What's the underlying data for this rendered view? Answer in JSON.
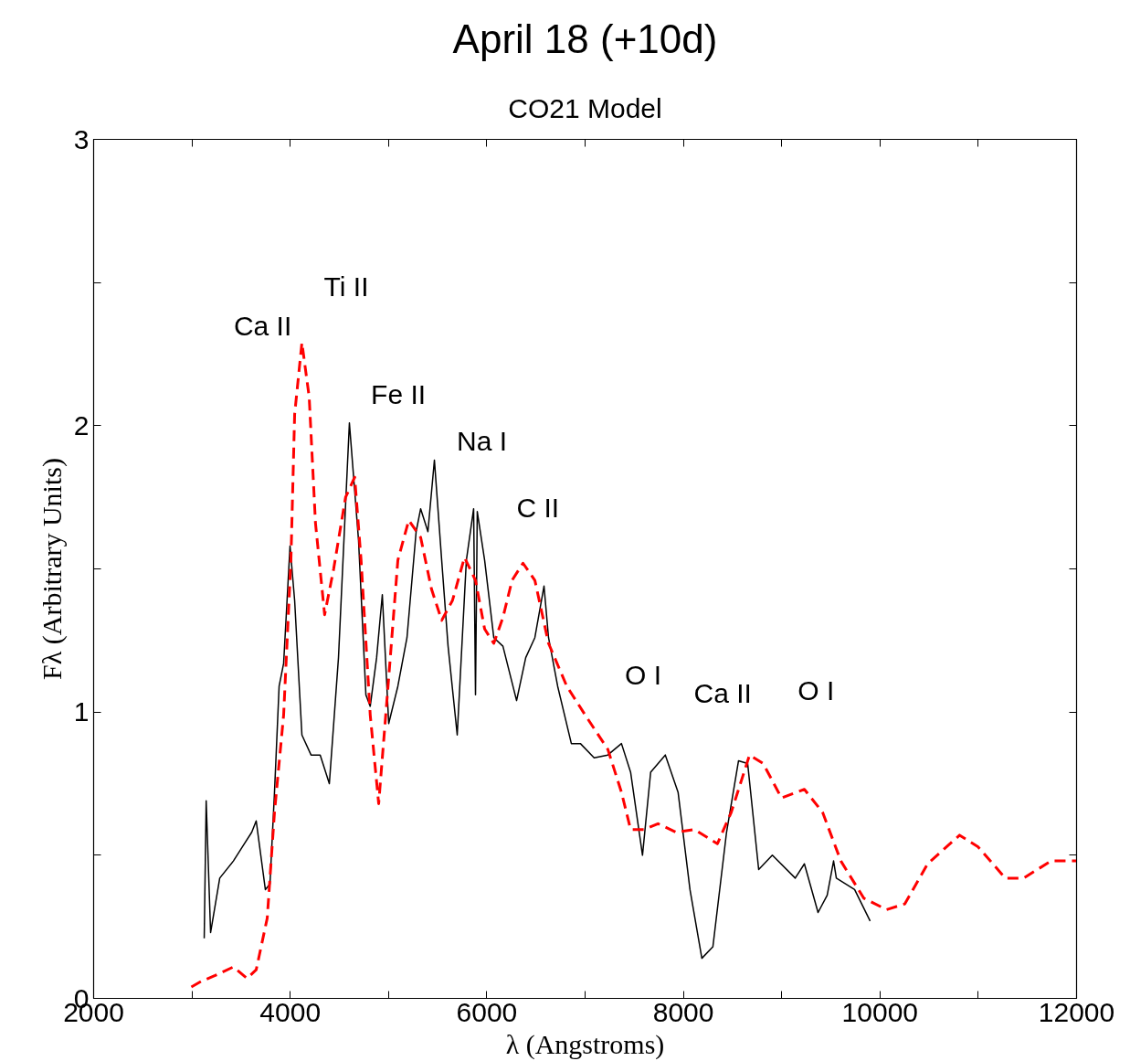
{
  "chart_data": {
    "type": "line",
    "title": "April 18 (+10d)",
    "subtitle": "CO21 Model",
    "xlabel": "λ (Angstroms)",
    "ylabel": "Fλ (Arbitrary Units)",
    "xlim": [
      2000,
      12000
    ],
    "ylim": [
      0,
      3
    ],
    "xticks": [
      2000,
      {
        "value": 3000,
        "label": null
      },
      4000,
      {
        "value": 5000,
        "label": null
      },
      6000,
      {
        "value": 7000,
        "label": null
      },
      8000,
      {
        "value": 9000,
        "label": null
      },
      10000,
      {
        "value": 11000,
        "label": null
      },
      12000
    ],
    "yticks": [
      0,
      {
        "value": 0.5,
        "label": null
      },
      1,
      {
        "value": 1.5,
        "label": null
      },
      2,
      {
        "value": 2.5,
        "label": null
      },
      3
    ],
    "grid": false,
    "marker": "none",
    "series": [
      {
        "color": "#000000",
        "line_style": "solid",
        "x": [
          3125,
          3145,
          3190,
          3283,
          3422,
          3515,
          3608,
          3654,
          3747,
          3794,
          3840,
          3887,
          3933,
          3998,
          4045,
          4119,
          4212,
          4305,
          4398,
          4491,
          4602,
          4695,
          4770,
          4814,
          4879,
          4937,
          5002,
          5095,
          5188,
          5281,
          5327,
          5401,
          5467,
          5541,
          5606,
          5699,
          5792,
          5866,
          5885,
          5903,
          5978,
          6071,
          6164,
          6303,
          6396,
          6489,
          6582,
          6628,
          6721,
          6860,
          6952,
          7092,
          7231,
          7370,
          7463,
          7584,
          7667,
          7816,
          7946,
          8067,
          8188,
          8300,
          8439,
          8561,
          8654,
          8766,
          8905,
          9138,
          9231,
          9370,
          9463,
          9528,
          9556,
          9742,
          9900
        ],
        "values": [
          0.21,
          0.69,
          0.23,
          0.42,
          0.48,
          0.53,
          0.58,
          0.62,
          0.38,
          0.4,
          0.72,
          1.09,
          1.17,
          1.58,
          1.39,
          0.92,
          0.85,
          0.85,
          0.75,
          1.19,
          2.01,
          1.6,
          1.06,
          1.02,
          1.19,
          1.41,
          0.96,
          1.09,
          1.26,
          1.63,
          1.71,
          1.63,
          1.88,
          1.53,
          1.23,
          0.92,
          1.53,
          1.71,
          1.06,
          1.7,
          1.53,
          1.26,
          1.23,
          1.04,
          1.19,
          1.26,
          1.44,
          1.26,
          1.09,
          0.89,
          0.89,
          0.84,
          0.85,
          0.89,
          0.79,
          0.5,
          0.79,
          0.85,
          0.72,
          0.38,
          0.14,
          0.18,
          0.58,
          0.83,
          0.82,
          0.45,
          0.5,
          0.42,
          0.47,
          0.3,
          0.36,
          0.48,
          0.42,
          0.38,
          0.27
        ]
      },
      {
        "color": "#ff0000",
        "line_style": "dashed",
        "x": [
          2994,
          3097,
          3236,
          3422,
          3561,
          3654,
          3766,
          3840,
          3933,
          4007,
          4045,
          4119,
          4193,
          4257,
          4350,
          4442,
          4563,
          4656,
          4721,
          4814,
          4900,
          5002,
          5095,
          5206,
          5327,
          5437,
          5541,
          5651,
          5773,
          5885,
          5978,
          6071,
          6164,
          6257,
          6368,
          6489,
          6628,
          6814,
          7000,
          7231,
          7370,
          7463,
          7602,
          7742,
          7928,
          8113,
          8346,
          8487,
          8673,
          8812,
          8998,
          9231,
          9416,
          9602,
          9835,
          10067,
          10253,
          10485,
          10810,
          10996,
          11275,
          11461,
          11740,
          12000
        ],
        "values": [
          0.04,
          0.06,
          0.08,
          0.11,
          0.07,
          0.1,
          0.28,
          0.65,
          0.99,
          1.53,
          2.04,
          2.29,
          2.1,
          1.66,
          1.34,
          1.5,
          1.75,
          1.82,
          1.53,
          0.99,
          0.68,
          1.12,
          1.53,
          1.67,
          1.61,
          1.43,
          1.32,
          1.39,
          1.54,
          1.46,
          1.29,
          1.24,
          1.33,
          1.46,
          1.52,
          1.46,
          1.24,
          1.09,
          0.99,
          0.87,
          0.72,
          0.59,
          0.59,
          0.61,
          0.58,
          0.59,
          0.54,
          0.65,
          0.85,
          0.82,
          0.7,
          0.73,
          0.65,
          0.48,
          0.35,
          0.31,
          0.33,
          0.47,
          0.57,
          0.53,
          0.42,
          0.42,
          0.48,
          0.48
        ]
      }
    ],
    "annotations": [
      "Ca II",
      "Ti II",
      "Fe II",
      "Na I",
      "C II",
      "O I",
      "Ca II",
      "O I"
    ]
  }
}
